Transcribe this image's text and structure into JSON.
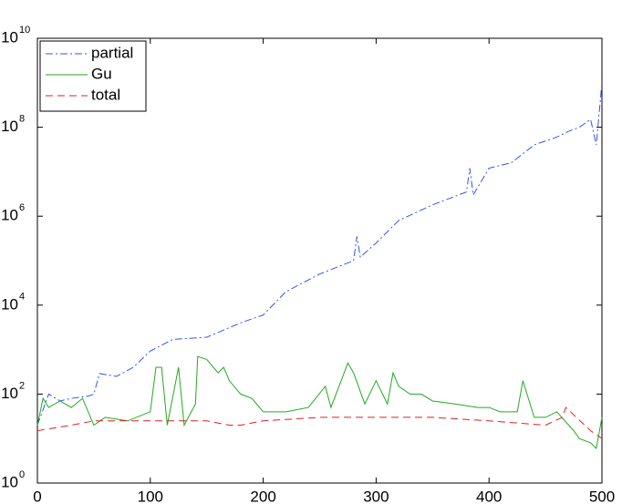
{
  "chart_data": {
    "type": "line",
    "log_y": true,
    "legend": "upper-left",
    "xlim": [
      0,
      500
    ],
    "xticks": [
      0,
      100,
      200,
      300,
      400,
      500
    ],
    "ylim": [
      1,
      10000000000
    ],
    "yticks": [
      {
        "value": 1,
        "label": "10",
        "exponent": 0
      },
      {
        "value": 100,
        "label": "10",
        "exponent": 2
      },
      {
        "value": 10000,
        "label": "10",
        "exponent": 4
      },
      {
        "value": 1000000,
        "label": "10",
        "exponent": 6
      },
      {
        "value": 100000000,
        "label": "10",
        "exponent": 8
      },
      {
        "value": 10000000000,
        "label": "10",
        "exponent": 10
      }
    ],
    "series": [
      {
        "name": "partial",
        "color": "#3355ee",
        "dash": "8 3 2 3",
        "x": [
          0,
          10,
          20,
          30,
          45,
          50,
          55,
          70,
          85,
          100,
          120,
          150,
          180,
          200,
          220,
          250,
          280,
          283,
          286,
          300,
          320,
          350,
          380,
          383,
          386,
          400,
          420,
          440,
          460,
          470,
          480,
          490,
          495,
          500
        ],
        "values": [
          20,
          100,
          70,
          80,
          90,
          100,
          290,
          250,
          400,
          930,
          1700,
          1900,
          4000,
          6000,
          20000,
          50000,
          100000,
          350000,
          120000,
          250000,
          800000,
          1800000,
          3500000,
          12000000,
          3000000,
          12000000,
          16000000,
          40000000,
          60000000,
          80000000,
          100000000,
          150000000,
          40000000,
          1000000000
        ]
      },
      {
        "name": "Gu",
        "color": "#22aa22",
        "dash": "",
        "x": [
          0,
          5,
          10,
          20,
          30,
          40,
          50,
          60,
          80,
          100,
          105,
          110,
          115,
          125,
          130,
          140,
          142,
          150,
          160,
          165,
          170,
          180,
          190,
          200,
          220,
          240,
          255,
          260,
          275,
          280,
          290,
          300,
          310,
          315,
          320,
          330,
          340,
          350,
          370,
          390,
          400,
          410,
          425,
          430,
          440,
          450,
          460,
          475,
          480,
          490,
          495,
          500
        ],
        "values": [
          20,
          80,
          50,
          70,
          50,
          80,
          20,
          30,
          25,
          40,
          400,
          400,
          20,
          400,
          20,
          60,
          700,
          600,
          300,
          400,
          200,
          100,
          80,
          40,
          40,
          50,
          150,
          50,
          500,
          300,
          60,
          200,
          60,
          300,
          150,
          100,
          100,
          70,
          60,
          50,
          50,
          40,
          40,
          200,
          30,
          30,
          40,
          15,
          10,
          8,
          6,
          30
        ]
      },
      {
        "name": "total",
        "color": "#dd2222",
        "dash": "8 5",
        "x": [
          0,
          30,
          50,
          150,
          170,
          180,
          200,
          250,
          350,
          400,
          450,
          465,
          468,
          490,
          500
        ],
        "values": [
          15,
          20,
          25,
          25,
          20,
          20,
          25,
          30,
          30,
          25,
          20,
          30,
          50,
          15,
          10
        ]
      }
    ]
  }
}
